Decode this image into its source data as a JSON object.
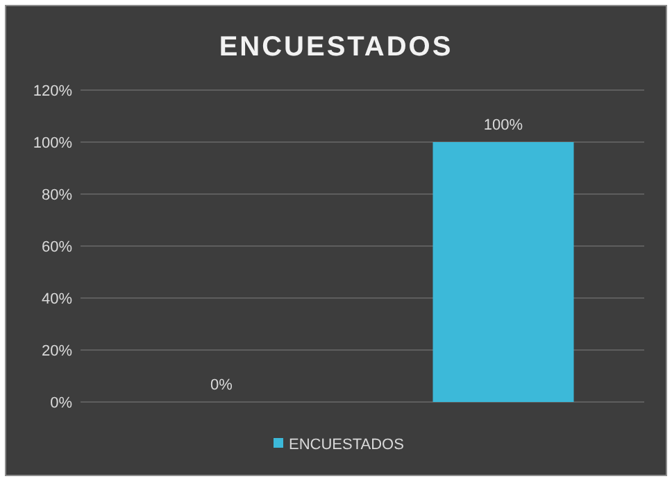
{
  "chart_data": {
    "type": "bar",
    "title": "ENCUESTADOS",
    "categories": [
      null,
      null
    ],
    "series": [
      {
        "name": "ENCUESTADOS",
        "color": "#3cb9d9",
        "values": [
          0,
          100
        ],
        "value_labels": [
          "0%",
          "100%"
        ]
      }
    ],
    "ylim": [
      0,
      120
    ],
    "yticks": [
      {
        "value": 0,
        "label": "0%"
      },
      {
        "value": 20,
        "label": "20%"
      },
      {
        "value": 40,
        "label": "40%"
      },
      {
        "value": 60,
        "label": "60%"
      },
      {
        "value": 80,
        "label": "80%"
      },
      {
        "value": 100,
        "label": "100%"
      },
      {
        "value": 120,
        "label": "120%"
      }
    ],
    "grid": "y",
    "legend": "bottom"
  }
}
